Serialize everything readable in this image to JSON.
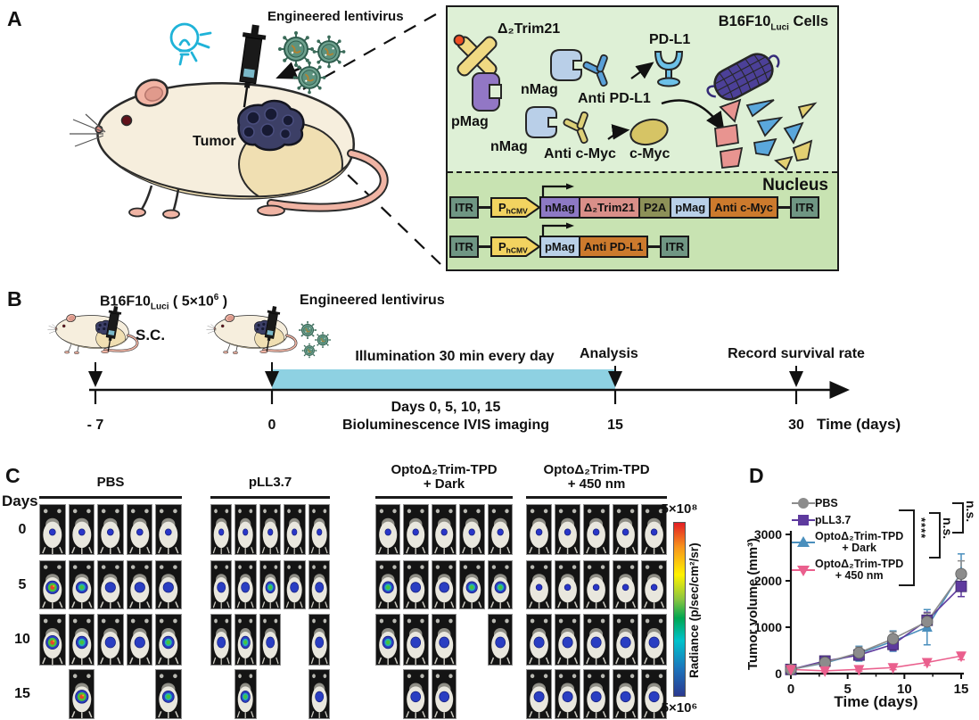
{
  "colors": {
    "cell_bg": "#def0d6",
    "nucleus_bg": "#c8e3b2",
    "illumination_bar": "#8ed1e2",
    "bulb_cyan": "#1fb3d8",
    "virus_green": "#6fa28f",
    "colorbar_gradient": [
      "#e31e24",
      "#f7941d",
      "#fff200",
      "#8dc63f",
      "#00a651",
      "#00c2cb",
      "#1c75bc",
      "#2b3990"
    ]
  },
  "panel_a": {
    "label": "A",
    "lentivirus_label": "Engineered lentivirus",
    "tumor_label": "Tumor",
    "cell_box": {
      "title_prefix": "B16F10",
      "title_sub": "Luci",
      "title_suffix": " Cells",
      "trim21": "Δ₂Trim21",
      "pmag": "pMag",
      "nmag1": "nMag",
      "nmag2": "nMag",
      "anti_pdl1": "Anti PD-L1",
      "pdl1": "PD-L1",
      "anti_cmyc": "Anti c-Myc",
      "cmyc": "c-Myc",
      "nucleus": "Nucleus",
      "constructs": [
        {
          "segments": [
            {
              "t": "ITR",
              "k": "itr"
            },
            {
              "k": "conn"
            },
            {
              "t": "P",
              "sub": "hCMV",
              "k": "prom"
            },
            {
              "t": "nMag",
              "k": "nmag"
            },
            {
              "t": "Δ₂Trim21",
              "k": "trim"
            },
            {
              "t": "P2A",
              "k": "p2a"
            },
            {
              "t": "pMag",
              "k": "pmag"
            },
            {
              "t": "Anti c-Myc",
              "k": "anti"
            },
            {
              "k": "conn"
            },
            {
              "t": "ITR",
              "k": "itr"
            }
          ]
        },
        {
          "segments": [
            {
              "t": "ITR",
              "k": "itr"
            },
            {
              "k": "conn"
            },
            {
              "t": "P",
              "sub": "hCMV",
              "k": "prom"
            },
            {
              "t": "pMag",
              "k": "pmag"
            },
            {
              "t": "Anti PD-L1",
              "k": "anti"
            },
            {
              "k": "conn"
            },
            {
              "t": "ITR",
              "k": "itr"
            }
          ]
        }
      ]
    }
  },
  "panel_b": {
    "label": "B",
    "cells_prefix": "B16F10",
    "cells_sub": "Luci",
    "cells_mid": " ( 5×10",
    "cells_sup": "6",
    "cells_end": " )",
    "sc": "S.C.",
    "lentivirus": "Engineered lentivirus",
    "illumination": "Illumination 30 min every day",
    "analysis": "Analysis",
    "record": "Record survival rate",
    "days_line": "Days 0, 5, 10, 15",
    "imaging_line": "Bioluminescence IVIS imaging",
    "ticks": [
      "- 7",
      "0",
      "15",
      "30"
    ],
    "time_label": "Time (days)"
  },
  "panel_c": {
    "label": "C",
    "days_header": "Days",
    "day_labels": [
      "0",
      "5",
      "10",
      "15"
    ],
    "groups": [
      {
        "name_lines": [
          "PBS"
        ],
        "grid": [
          [
            "b",
            "b",
            "b",
            "b",
            "b"
          ],
          [
            "R",
            "G",
            "B",
            "B",
            "B"
          ],
          [
            "R",
            "G",
            "B",
            "B",
            "G"
          ],
          [
            ".",
            "R",
            ".",
            ".",
            "G"
          ]
        ]
      },
      {
        "name_lines": [
          "pLL3.7"
        ],
        "grid": [
          [
            "b",
            "b",
            "b",
            "b",
            "b"
          ],
          [
            "B",
            "B",
            "G",
            "B",
            "B"
          ],
          [
            "B",
            "G",
            "B",
            ".",
            "B"
          ],
          [
            ".",
            "G",
            ".",
            ".",
            "B"
          ]
        ]
      },
      {
        "name_lines": [
          "OptoΔ₂Trim-TPD",
          "+ Dark"
        ],
        "grid": [
          [
            "b",
            "b",
            "b",
            "b",
            "b"
          ],
          [
            "G",
            "B",
            "B",
            "G",
            "G"
          ],
          [
            "G",
            "B",
            "B",
            ".",
            "B"
          ],
          [
            ".",
            "B",
            "B",
            ".",
            "."
          ]
        ]
      },
      {
        "name_lines": [
          "OptoΔ₂Trim-TPD",
          "+ 450 nm"
        ],
        "grid": [
          [
            "b",
            "b",
            "b",
            "b",
            "b"
          ],
          [
            "b",
            "b",
            "b",
            "b",
            "b"
          ],
          [
            "B",
            "B",
            "B",
            "B",
            "B"
          ],
          [
            "B",
            "B",
            "B",
            "B",
            "B"
          ]
        ]
      }
    ],
    "colorbar": {
      "top": "5×10⁸",
      "bottom": "5×10⁶",
      "label": "Radiance (p/sec/cm²/sr)"
    }
  },
  "panel_d": {
    "label": "D",
    "legend": [
      {
        "lines": [
          "PBS"
        ],
        "marker": "circle",
        "color": "#8c8c8c"
      },
      {
        "lines": [
          "pLL3.7"
        ],
        "marker": "square",
        "color": "#5e3a9e"
      },
      {
        "lines": [
          "OptoΔ₂Trim-TPD",
          "+ Dark"
        ],
        "marker": "triangle-up",
        "color": "#4a8fbd"
      },
      {
        "lines": [
          "OptoΔ₂Trim-TPD",
          "+ 450 nm"
        ],
        "marker": "triangle-down",
        "color": "#ea5f8d"
      }
    ],
    "significance": [
      "****",
      "n.s.",
      "n.s."
    ]
  },
  "chart_data": {
    "type": "line",
    "x": [
      0,
      3,
      6,
      9,
      12,
      15
    ],
    "series": [
      {
        "name": "PBS",
        "marker": "circle",
        "color": "#8c8c8c",
        "values": [
          90,
          240,
          450,
          750,
          1120,
          2150
        ],
        "errors": [
          20,
          90,
          120,
          150,
          180,
          280
        ]
      },
      {
        "name": "pLL3.7",
        "marker": "square",
        "color": "#5e3a9e",
        "values": [
          90,
          270,
          400,
          630,
          1150,
          1880
        ],
        "errors": [
          20,
          80,
          100,
          130,
          170,
          220
        ]
      },
      {
        "name": "OptoΔ₂Trim-TPD + Dark",
        "marker": "triangle-up",
        "color": "#4a8fbd",
        "values": [
          90,
          230,
          430,
          700,
          1000,
          2180
        ],
        "errors": [
          20,
          130,
          160,
          220,
          380,
          400
        ]
      },
      {
        "name": "OptoΔ₂Trim-TPD + 450 nm",
        "marker": "triangle-down",
        "color": "#ea5f8d",
        "values": [
          90,
          60,
          90,
          130,
          240,
          380
        ],
        "errors": [
          15,
          30,
          35,
          45,
          60,
          80
        ]
      }
    ],
    "title": "",
    "xlabel": "Time (days)",
    "ylabel": "Tumor volume (mm³)",
    "xlim": [
      0,
      15
    ],
    "ylim": [
      0,
      3000
    ],
    "xticks": [
      0,
      5,
      10,
      15
    ],
    "yticks": [
      0,
      1000,
      2000,
      3000
    ],
    "grid": false,
    "legend_position": "top-left"
  }
}
